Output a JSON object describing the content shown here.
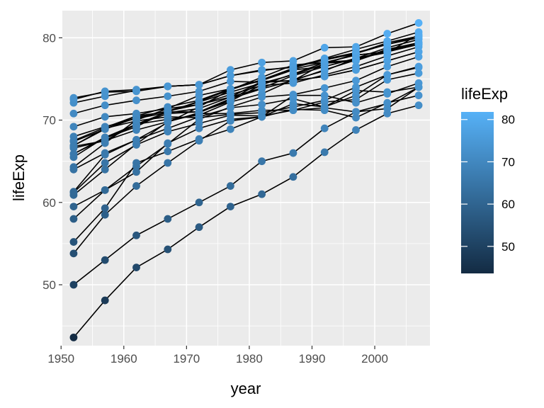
{
  "chart_data": {
    "type": "line",
    "xlabel": "year",
    "ylabel": "lifeExp",
    "xlim": [
      1950.2,
      2008.8
    ],
    "ylim": [
      42.6,
      83.3
    ],
    "x_ticks": [
      1950,
      1960,
      1970,
      1980,
      1990,
      2000
    ],
    "x_tick_labels": [
      "1950",
      "1960",
      "1970",
      "1980",
      "1990",
      "2000"
    ],
    "y_ticks": [
      50,
      60,
      70,
      80
    ],
    "y_tick_labels": [
      "50",
      "60",
      "70",
      "80"
    ],
    "grid": true,
    "legend": {
      "title": "lifeExp",
      "placement": "right",
      "type": "colorbar",
      "min": 43.6,
      "max": 81.8,
      "low_color": "#132B43",
      "high_color": "#56B1F7",
      "ticks": [
        50,
        60,
        70,
        80
      ],
      "tick_labels": [
        "50",
        "60",
        "70",
        "80"
      ]
    },
    "x": [
      1952,
      1957,
      1962,
      1967,
      1972,
      1977,
      1982,
      1987,
      1992,
      1997,
      2002,
      2007
    ],
    "series": [
      {
        "values": [
          55.2,
          59.3,
          64.8,
          66.2,
          67.7,
          68.9,
          70.4,
          72.0,
          71.6,
          73.0,
          75.5,
          76.4
        ]
      },
      {
        "values": [
          66.8,
          67.5,
          69.5,
          70.1,
          70.6,
          72.2,
          73.2,
          74.9,
          76.0,
          77.5,
          78.8,
          79.8
        ]
      },
      {
        "values": [
          68.0,
          69.2,
          70.2,
          70.9,
          71.4,
          72.8,
          73.9,
          75.4,
          76.5,
          77.5,
          78.3,
          79.4
        ]
      },
      {
        "values": [
          53.8,
          58.5,
          62.0,
          64.8,
          67.5,
          69.9,
          70.4,
          71.3,
          71.2,
          70.3,
          72.1,
          73.0
        ]
      },
      {
        "values": [
          50.0,
          53.0,
          56.0,
          58.0,
          60.0,
          62.0,
          65.0,
          66.0,
          69.0,
          71.0,
          72.0,
          74.0
        ]
      },
      {
        "values": [
          61.2,
          64.8,
          67.0,
          68.6,
          69.6,
          70.6,
          70.5,
          71.2,
          72.2,
          72.5,
          74.9,
          75.7
        ]
      },
      {
        "values": [
          66.9,
          69.0,
          69.9,
          70.4,
          70.3,
          70.7,
          70.9,
          71.6,
          72.4,
          74.0,
          75.5,
          76.5
        ]
      },
      {
        "values": [
          70.8,
          71.8,
          72.4,
          72.9,
          73.5,
          74.7,
          74.6,
          74.8,
          75.3,
          76.1,
          77.2,
          78.3
        ]
      },
      {
        "values": [
          66.6,
          67.5,
          68.8,
          69.8,
          70.9,
          72.5,
          74.6,
          74.8,
          75.3,
          76.1,
          77.2,
          78.3
        ]
      },
      {
        "values": [
          67.4,
          68.9,
          70.5,
          71.6,
          72.4,
          73.8,
          74.9,
          76.3,
          77.5,
          78.6,
          79.6,
          80.7
        ]
      },
      {
        "values": [
          67.5,
          69.1,
          70.5,
          71.0,
          71.0,
          72.3,
          74.3,
          75.6,
          77.0,
          77.3,
          78.6,
          79.4
        ]
      },
      {
        "values": [
          65.5,
          67.9,
          69.4,
          70.8,
          71.0,
          72.6,
          73.8,
          74.8,
          76.1,
          77.3,
          78.4,
          79.4
        ]
      },
      {
        "values": [
          65.9,
          67.9,
          69.5,
          71.0,
          72.3,
          73.7,
          75.2,
          76.7,
          77.0,
          77.9,
          78.3,
          79.2
        ]
      },
      {
        "values": [
          64.0,
          66.0,
          67.6,
          69.7,
          71.6,
          73.7,
          74.9,
          76.2,
          77.0,
          77.9,
          78.3,
          79.2
        ]
      },
      {
        "values": [
          60.9,
          64.0,
          67.1,
          69.8,
          70.8,
          70.8,
          71.2,
          71.2,
          71.5,
          71.0,
          71.4,
          74.0
        ]
      },
      {
        "values": [
          72.5,
          73.5,
          73.7,
          74.1,
          74.3,
          76.1,
          77.0,
          77.2,
          78.8,
          78.9,
          80.5,
          81.8
        ]
      },
      {
        "values": [
          66.9,
          68.9,
          70.3,
          71.1,
          71.9,
          73.1,
          74.2,
          74.5,
          75.5,
          76.5,
          77.8,
          78.9
        ]
      },
      {
        "values": [
          65.9,
          67.8,
          69.2,
          71.1,
          72.2,
          73.4,
          74.5,
          75.5,
          76.8,
          78.1,
          79.4,
          80.2
        ]
      },
      {
        "values": [
          59.5,
          61.5,
          63.7,
          67.2,
          69.0,
          70.1,
          70.4,
          73.0,
          73.0,
          72.1,
          73.2,
          74.5
        ]
      },
      {
        "values": [
          72.1,
          72.9,
          73.6,
          74.1,
          74.3,
          75.4,
          76.0,
          76.5,
          77.4,
          78.2,
          79.2,
          80.0
        ]
      },
      {
        "values": [
          72.7,
          73.4,
          73.5,
          74.1,
          74.3,
          75.4,
          76.1,
          76.4,
          77.3,
          78.1,
          79.2,
          80.2
        ]
      },
      {
        "values": [
          61.3,
          65.8,
          67.6,
          69.0,
          70.4,
          71.5,
          71.9,
          72.6,
          71.6,
          73.6,
          73.4,
          74.0
        ]
      },
      {
        "values": [
          43.6,
          48.1,
          52.1,
          54.3,
          57.0,
          59.5,
          61.0,
          63.1,
          66.1,
          68.8,
          70.8,
          71.8
        ]
      },
      {
        "values": [
          69.2,
          70.4,
          70.8,
          71.4,
          71.9,
          72.8,
          74.7,
          74.8,
          76.9,
          77.2,
          78.5,
          79.4
        ]
      },
      {
        "values": [
          58.0,
          61.5,
          64.4,
          67.1,
          70.1,
          71.6,
          72.8,
          73.1,
          73.9,
          74.8,
          76.5,
          77.7
        ]
      },
      {
        "values": [
          64.3,
          67.2,
          70.0,
          71.4,
          73.0,
          73.8,
          74.8,
          76.1,
          76.5,
          77.5,
          78.2,
          80.4
        ]
      }
    ]
  }
}
